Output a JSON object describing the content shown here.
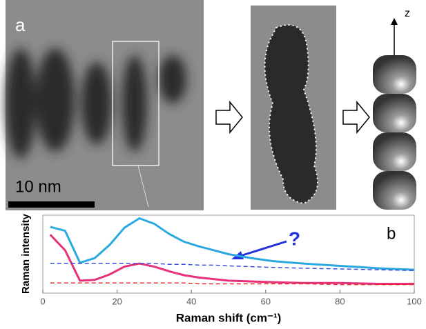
{
  "figure": {
    "panel_a_label": "a",
    "scale_bar": "10 nm",
    "axis_label": "z"
  },
  "chart_data": {
    "type": "line",
    "panel_label": "b",
    "annotation": "?",
    "xlabel": "Raman shift (cm⁻¹)",
    "ylabel": "Raman intensity",
    "x": [
      2,
      6,
      10,
      14,
      18,
      22,
      26,
      30,
      34,
      38,
      42,
      46,
      50,
      56,
      62,
      70,
      80,
      90,
      100
    ],
    "series": [
      {
        "color": "#2aa8e0",
        "dashed": false,
        "values": [
          8.5,
          8.0,
          3.9,
          4.5,
          6.2,
          8.4,
          9.6,
          8.9,
          7.6,
          6.6,
          6.0,
          5.5,
          5.0,
          4.5,
          4.1,
          3.8,
          3.5,
          3.2,
          3.0
        ]
      },
      {
        "color": "#e8307a",
        "dashed": false,
        "values": [
          7.5,
          5.5,
          1.6,
          1.7,
          2.4,
          3.4,
          3.8,
          3.4,
          2.8,
          2.3,
          2.0,
          1.8,
          1.6,
          1.5,
          1.4,
          1.3,
          1.3,
          1.2,
          1.2
        ]
      },
      {
        "color": "#3a4fd8",
        "dashed": true,
        "values": [
          3.8,
          3.8,
          3.8,
          3.8,
          3.8,
          3.8,
          3.8,
          3.8,
          3.7,
          3.7,
          3.6,
          3.6,
          3.5,
          3.4,
          3.3,
          3.2,
          3.1,
          3.0,
          2.9
        ]
      },
      {
        "color": "#e03030",
        "dashed": true,
        "values": [
          1.3,
          1.3,
          1.3,
          1.3,
          1.3,
          1.3,
          1.3,
          1.3,
          1.3,
          1.3,
          1.2,
          1.2,
          1.2,
          1.2,
          1.2,
          1.2,
          1.1,
          1.1,
          1.1
        ]
      }
    ],
    "xlim": [
      0,
      100
    ],
    "xticks": [
      0,
      20,
      40,
      60,
      80,
      100
    ],
    "ylim": [
      0,
      10
    ]
  }
}
